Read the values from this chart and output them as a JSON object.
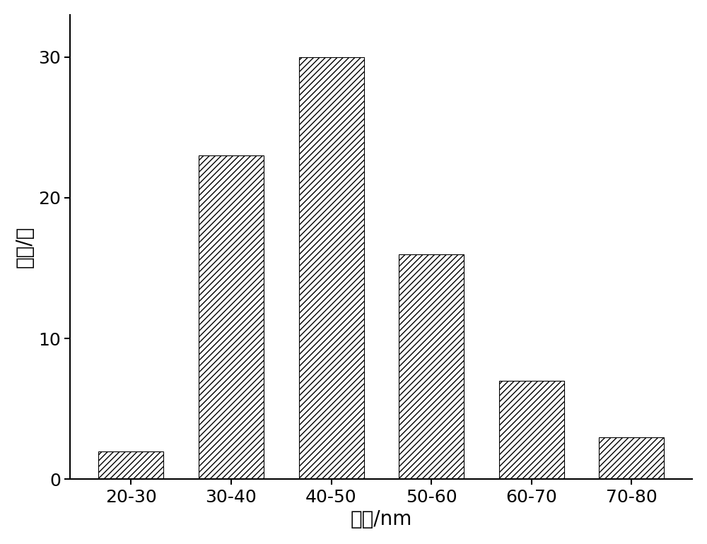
{
  "categories": [
    "20-30",
    "30-40",
    "40-50",
    "50-60",
    "60-70",
    "70-80"
  ],
  "values": [
    2,
    23,
    30,
    16,
    7,
    3
  ],
  "bar_color": "#ffffff",
  "bar_edgecolor": "#000000",
  "hatch_pattern": "////",
  "xlabel": "粒径/nm",
  "ylabel": "数量/个",
  "ylim": [
    0,
    33
  ],
  "yticks": [
    0,
    10,
    20,
    30
  ],
  "xlabel_fontsize": 20,
  "ylabel_fontsize": 20,
  "tick_fontsize": 18,
  "background_color": "#ffffff",
  "bar_width": 0.65
}
